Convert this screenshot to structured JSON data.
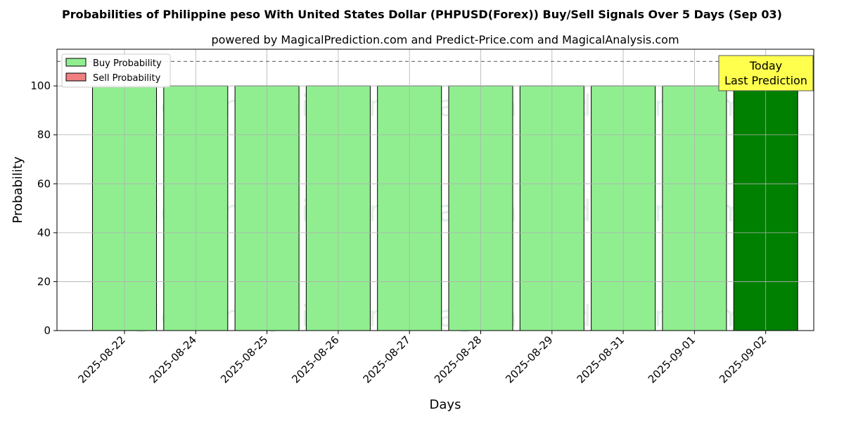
{
  "chart_data": {
    "type": "bar",
    "title": "Probabilities of Philippine peso With United States Dollar (PHPUSD(Forex)) Buy/Sell Signals Over 5 Days (Sep 03)",
    "subtitle": "powered by MagicalPrediction.com and Predict-Price.com and MagicalAnalysis.com",
    "xlabel": "Days",
    "ylabel": "Probability",
    "ylim": [
      0,
      115
    ],
    "yticks": [
      0,
      20,
      40,
      60,
      80,
      100
    ],
    "reference_line": 110,
    "categories": [
      "2025-08-22",
      "2025-08-24",
      "2025-08-25",
      "2025-08-26",
      "2025-08-27",
      "2025-08-28",
      "2025-08-29",
      "2025-08-31",
      "2025-09-01",
      "2025-09-02"
    ],
    "series": [
      {
        "name": "Buy Probability",
        "values": [
          100,
          100,
          100,
          100,
          100,
          100,
          100,
          100,
          100,
          100
        ],
        "color": "#90ee90",
        "highlight_color": "#008000"
      },
      {
        "name": "Sell Probability",
        "values": [
          0,
          0,
          0,
          0,
          0,
          0,
          0,
          0,
          0,
          0
        ],
        "color": "#f08080"
      }
    ],
    "highlight_index": 9,
    "grid": true,
    "legend_position": "top-left",
    "annotation": {
      "line1": "Today",
      "line2": "Last Prediction",
      "color": "#ffff4d"
    },
    "watermarks": [
      "MagicalAnalysis.com",
      "MagicalPrediction.com"
    ]
  }
}
